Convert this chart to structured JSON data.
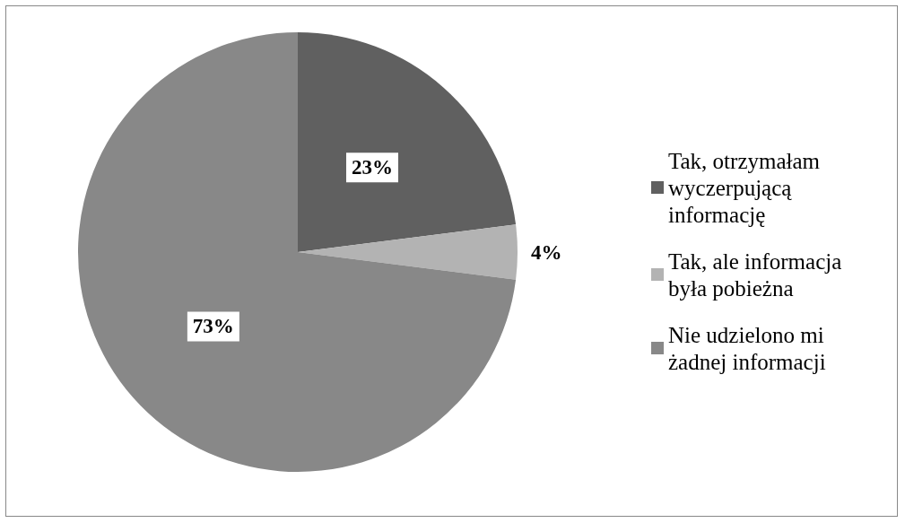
{
  "chart_data": {
    "type": "pie",
    "categories": [
      "Tak, otrzymałam wyczerpującą informację",
      "Tak, ale informacja była pobieżna",
      "Nie udzielono mi żadnej informacji"
    ],
    "values": [
      23,
      4,
      73
    ],
    "colors": [
      "#606060",
      "#b3b3b3",
      "#888888"
    ],
    "value_labels": [
      "23%",
      "4%",
      "73%"
    ],
    "legend": "right"
  }
}
